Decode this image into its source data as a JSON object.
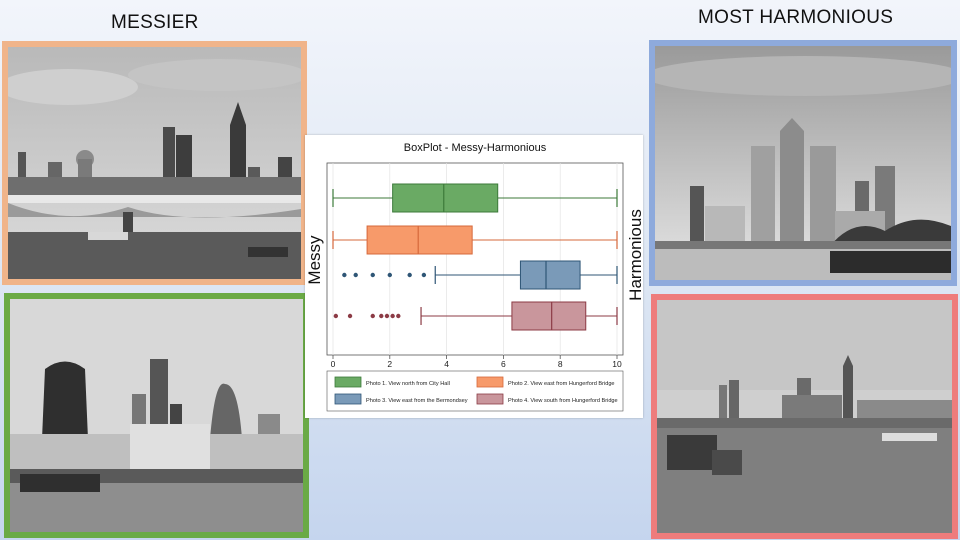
{
  "slide": {
    "left_heading": "MESSIER",
    "right_heading": "MOST HARMONIOUS",
    "colors": {
      "photo1_border": "#f0b48a",
      "photo2_border": "#6aaa46",
      "photo3_border": "#8eaadc",
      "photo4_border": "#ee7c7c"
    }
  },
  "chart_data": {
    "type": "boxplot",
    "title": "BoxPlot - Messy-Harmonious",
    "xlabel": "",
    "left_axis_label": "Messy",
    "right_axis_label": "Harmonious",
    "xlim": [
      0,
      10
    ],
    "x_ticks": [
      "0",
      "2",
      "4",
      "6",
      "8",
      "10"
    ],
    "grid": true,
    "legend_position": "bottom",
    "series": [
      {
        "name": "Photo 1. View north from City Hall",
        "color": "#6aaa64",
        "edge": "#3c7a3a",
        "whisker_low": 0,
        "q1": 2.1,
        "median": 3.9,
        "q3": 5.8,
        "whisker_high": 10,
        "outliers": []
      },
      {
        "name": "Photo 2. View east from Hungerford Bridge",
        "color": "#f79a6a",
        "edge": "#d6683b",
        "whisker_low": 0,
        "q1": 1.2,
        "median": 3.0,
        "q3": 4.9,
        "whisker_high": 10,
        "outliers": []
      },
      {
        "name": "Photo 3. View east from the Bermondsey",
        "color": "#7a9ab8",
        "edge": "#2f5676",
        "whisker_low": 3.6,
        "q1": 6.6,
        "median": 7.5,
        "q3": 8.7,
        "whisker_high": 10,
        "outliers": [
          0.4,
          0.8,
          1.4,
          2.0,
          2.7,
          3.2
        ]
      },
      {
        "name": "Photo 4. View south from Hungerford Bridge",
        "color": "#c9969c",
        "edge": "#8c3b45",
        "whisker_low": 3.1,
        "q1": 6.3,
        "median": 7.7,
        "q3": 8.9,
        "whisker_high": 10,
        "outliers": [
          0.1,
          0.6,
          1.4,
          1.7,
          1.9,
          2.1,
          2.3
        ]
      }
    ]
  }
}
